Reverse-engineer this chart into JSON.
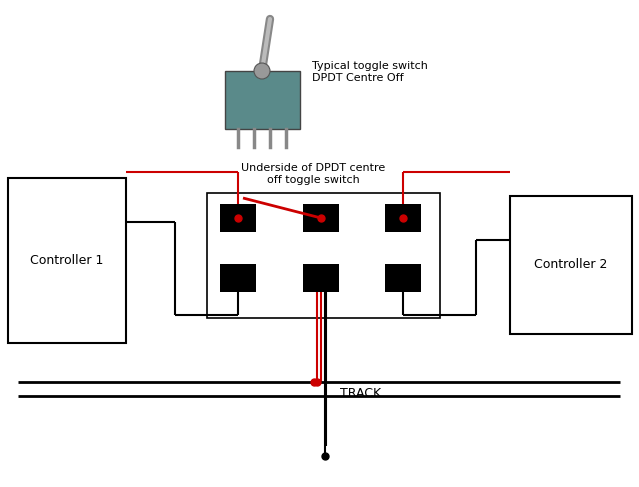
{
  "bg_color": "#ffffff",
  "toggle_label_line1": "Typical toggle switch",
  "toggle_label_line2": "DPDT Centre Off",
  "switch_label_line1": "Underside of DPDT centre",
  "switch_label_line2": "off toggle switch",
  "track_label": "TRACK",
  "controller1_label": "Controller 1",
  "controller2_label": "Controller 2",
  "fig_width": 6.39,
  "fig_height": 4.87,
  "dpi": 100,
  "line_color_black": "#000000",
  "line_color_red": "#cc0000"
}
